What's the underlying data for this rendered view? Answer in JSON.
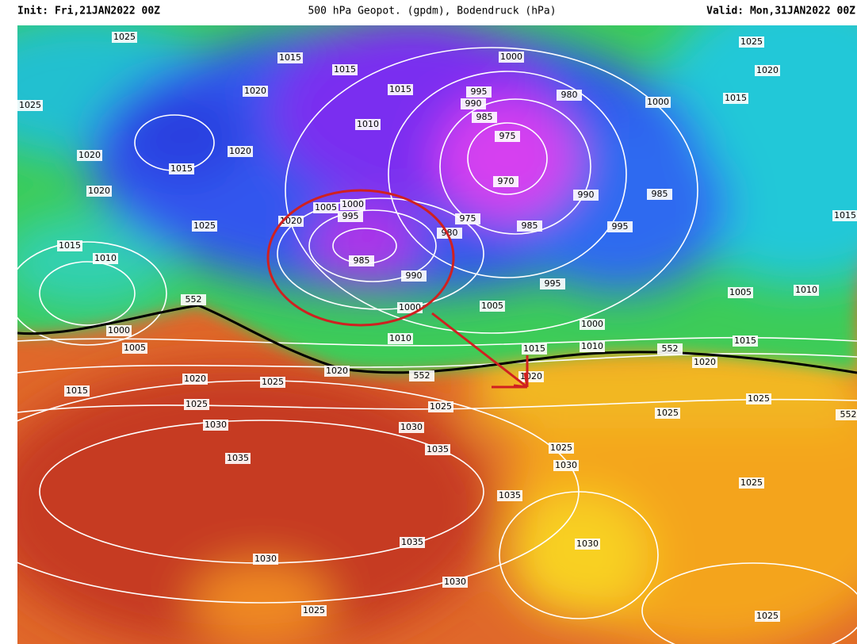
{
  "header": {
    "init": "Init: Fri,21JAN2022 00Z",
    "title": "500 hPa Geopot. (gpdm), Bodendruck (hPa)",
    "valid": "Valid: Mon,31JAN2022 00Z"
  },
  "contour_labels": [
    1025,
    1015,
    1015,
    1020,
    1015,
    1000,
    995,
    990,
    985,
    980,
    1000,
    1015,
    1025,
    1020,
    1025,
    1010,
    975,
    970,
    1020,
    1015,
    1020,
    990,
    985,
    1020,
    1000,
    1005,
    995,
    1020,
    975,
    980,
    985,
    995,
    1025,
    1015,
    1015,
    1010,
    985,
    990,
    995,
    552,
    1005,
    1010,
    1000,
    1005,
    1000,
    1000,
    1005,
    1010,
    1015,
    1010,
    552,
    1015,
    1020,
    1020,
    1025,
    1020,
    552,
    1020,
    1015,
    1025,
    1025,
    1025,
    1025,
    552,
    1030,
    1030,
    1035,
    1025,
    1030,
    1035,
    1025,
    1035,
    1035,
    1030,
    1030,
    1030,
    1025,
    1025
  ]
}
